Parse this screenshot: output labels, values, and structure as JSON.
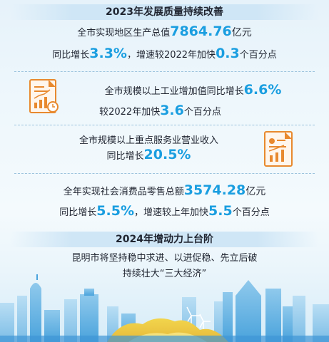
{
  "header": {
    "title": "2023年发展质量持续改善"
  },
  "gdp": {
    "prefix": "全市实现地区生产总值",
    "value": "7864.76",
    "unit": "亿元",
    "growth_prefix": "同比增长",
    "growth": "3.3%",
    "sep": "，增速较2022年加快",
    "accel": "0.3",
    "accel_unit": "个百分点"
  },
  "industry": {
    "prefix": "全市规模以上工业增加值同比增长",
    "growth": "6.6%",
    "accel_prefix": "较2022年加快",
    "accel": "3.6",
    "accel_unit": "个百分点"
  },
  "services": {
    "line1": "全市规模以上重点服务业营业收入",
    "growth_prefix": "同比增长",
    "growth": "20.5%"
  },
  "retail": {
    "prefix": "全年实现社会消费品零售总额",
    "value": "3574.28",
    "unit": "亿元",
    "growth_prefix": "同比增长",
    "growth": "5.5%",
    "sep": "，增速较上年加快",
    "accel": "5.5",
    "accel_unit": "个百分点"
  },
  "outlook": {
    "title": "2024年增动力上台阶",
    "line1": "昆明市将坚持稳中求进、以进促稳、先立后破",
    "line2": "持续壮大“三大经济”"
  },
  "icons": [
    "document-chart-icon",
    "document-chart-icon-2"
  ],
  "colors": {
    "accent": "#1a9ee0",
    "icon_orange": "#e8892e",
    "text": "#1f2430"
  }
}
